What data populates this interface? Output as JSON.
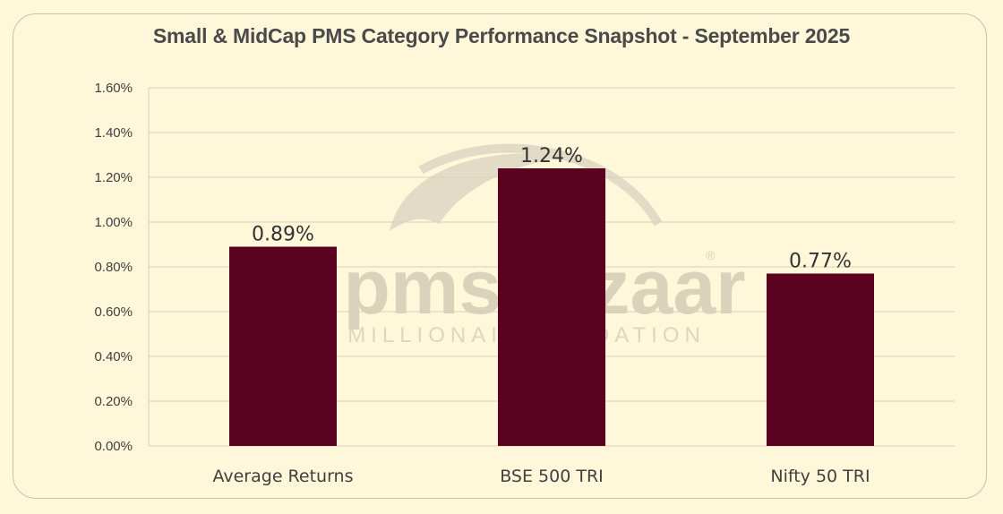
{
  "chart_data": {
    "type": "bar",
    "title": "Small & MidCap PMS Category Performance Snapshot - September 2025",
    "categories": [
      "Average Returns",
      "BSE 500 TRI",
      "Nifty 50 TRI"
    ],
    "values": [
      0.89,
      1.24,
      0.77
    ],
    "data_labels": [
      "0.89%",
      "1.24%",
      "0.77%"
    ],
    "ylim": [
      0,
      1.6
    ],
    "yticks": [
      0,
      0.2,
      0.4,
      0.6,
      0.8,
      1.0,
      1.2,
      1.4,
      1.6
    ],
    "ytick_labels": [
      "0.00%",
      "0.20%",
      "0.40%",
      "0.60%",
      "0.80%",
      "1.00%",
      "1.20%",
      "1.40%",
      "1.60%"
    ],
    "grid": true,
    "legend": "none",
    "bar_color": "#5b0220"
  },
  "watermark": {
    "text": "pmsbazaar",
    "tagline": "MILLIONAIRE ANDATION",
    "registered": "®"
  }
}
